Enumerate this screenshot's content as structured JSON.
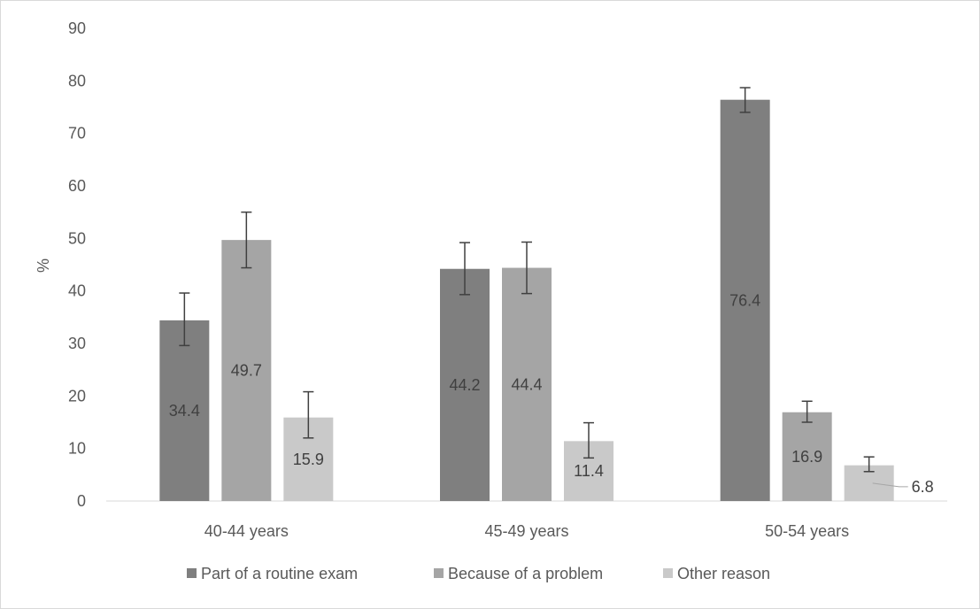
{
  "chart_data": {
    "type": "bar",
    "title": "",
    "xlabel": "",
    "ylabel": "%",
    "ylim": [
      0,
      90
    ],
    "ytick_step": 10,
    "yticks": [
      "0",
      "10",
      "20",
      "30",
      "40",
      "50",
      "60",
      "70",
      "80",
      "90"
    ],
    "grid": false,
    "legend_position": "bottom",
    "categories": [
      "40-44 years",
      "45-49 years",
      "50-54 years"
    ],
    "series": [
      {
        "name": "Part of a routine exam",
        "color": "#7f7f7f",
        "values": [
          34.4,
          44.2,
          76.4
        ],
        "labels": [
          "34.4",
          "44.2",
          "76.4"
        ],
        "error_low": [
          29.6,
          39.3,
          74.0
        ],
        "error_high": [
          39.6,
          49.2,
          78.7
        ]
      },
      {
        "name": "Because of a problem",
        "color": "#a5a5a5",
        "values": [
          49.7,
          44.4,
          16.9
        ],
        "labels": [
          "49.7",
          "44.4",
          "16.9"
        ],
        "error_low": [
          44.4,
          39.5,
          15.0
        ],
        "error_high": [
          55.0,
          49.3,
          19.0
        ]
      },
      {
        "name": "Other reason",
        "color": "#c9c9c9",
        "values": [
          15.9,
          11.4,
          6.8
        ],
        "labels": [
          "15.9",
          "11.4",
          "6.8"
        ],
        "error_low": [
          12.0,
          8.2,
          5.6
        ],
        "error_high": [
          20.8,
          14.9,
          8.4
        ]
      }
    ]
  }
}
